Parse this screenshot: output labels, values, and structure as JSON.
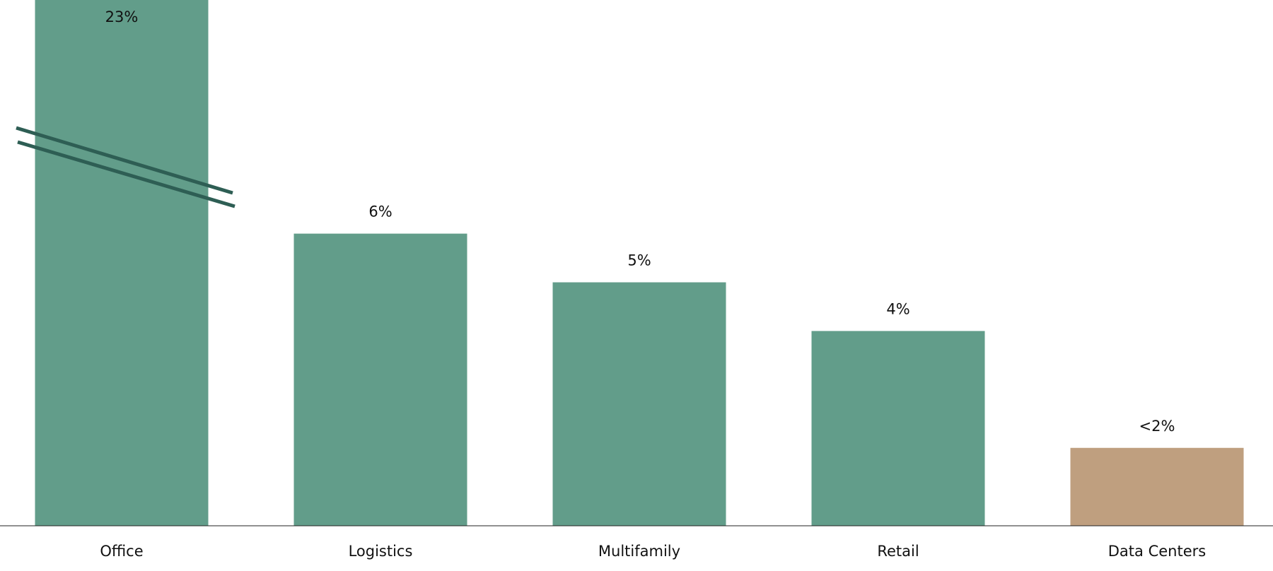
{
  "chart_data": {
    "type": "bar",
    "categories": [
      "Office",
      "Logistics",
      "Multifamily",
      "Retail",
      "Data Centers"
    ],
    "values": [
      23,
      6,
      5,
      4,
      1.6
    ],
    "value_labels": [
      "23%",
      "6%",
      "5%",
      "4%",
      "<2%"
    ],
    "colors": [
      "#629d8a",
      "#629d8a",
      "#629d8a",
      "#629d8a",
      "#bf9f7f"
    ],
    "ylim": [
      0,
      10
    ],
    "axis_break": true,
    "break_color": "#2e5e54"
  }
}
